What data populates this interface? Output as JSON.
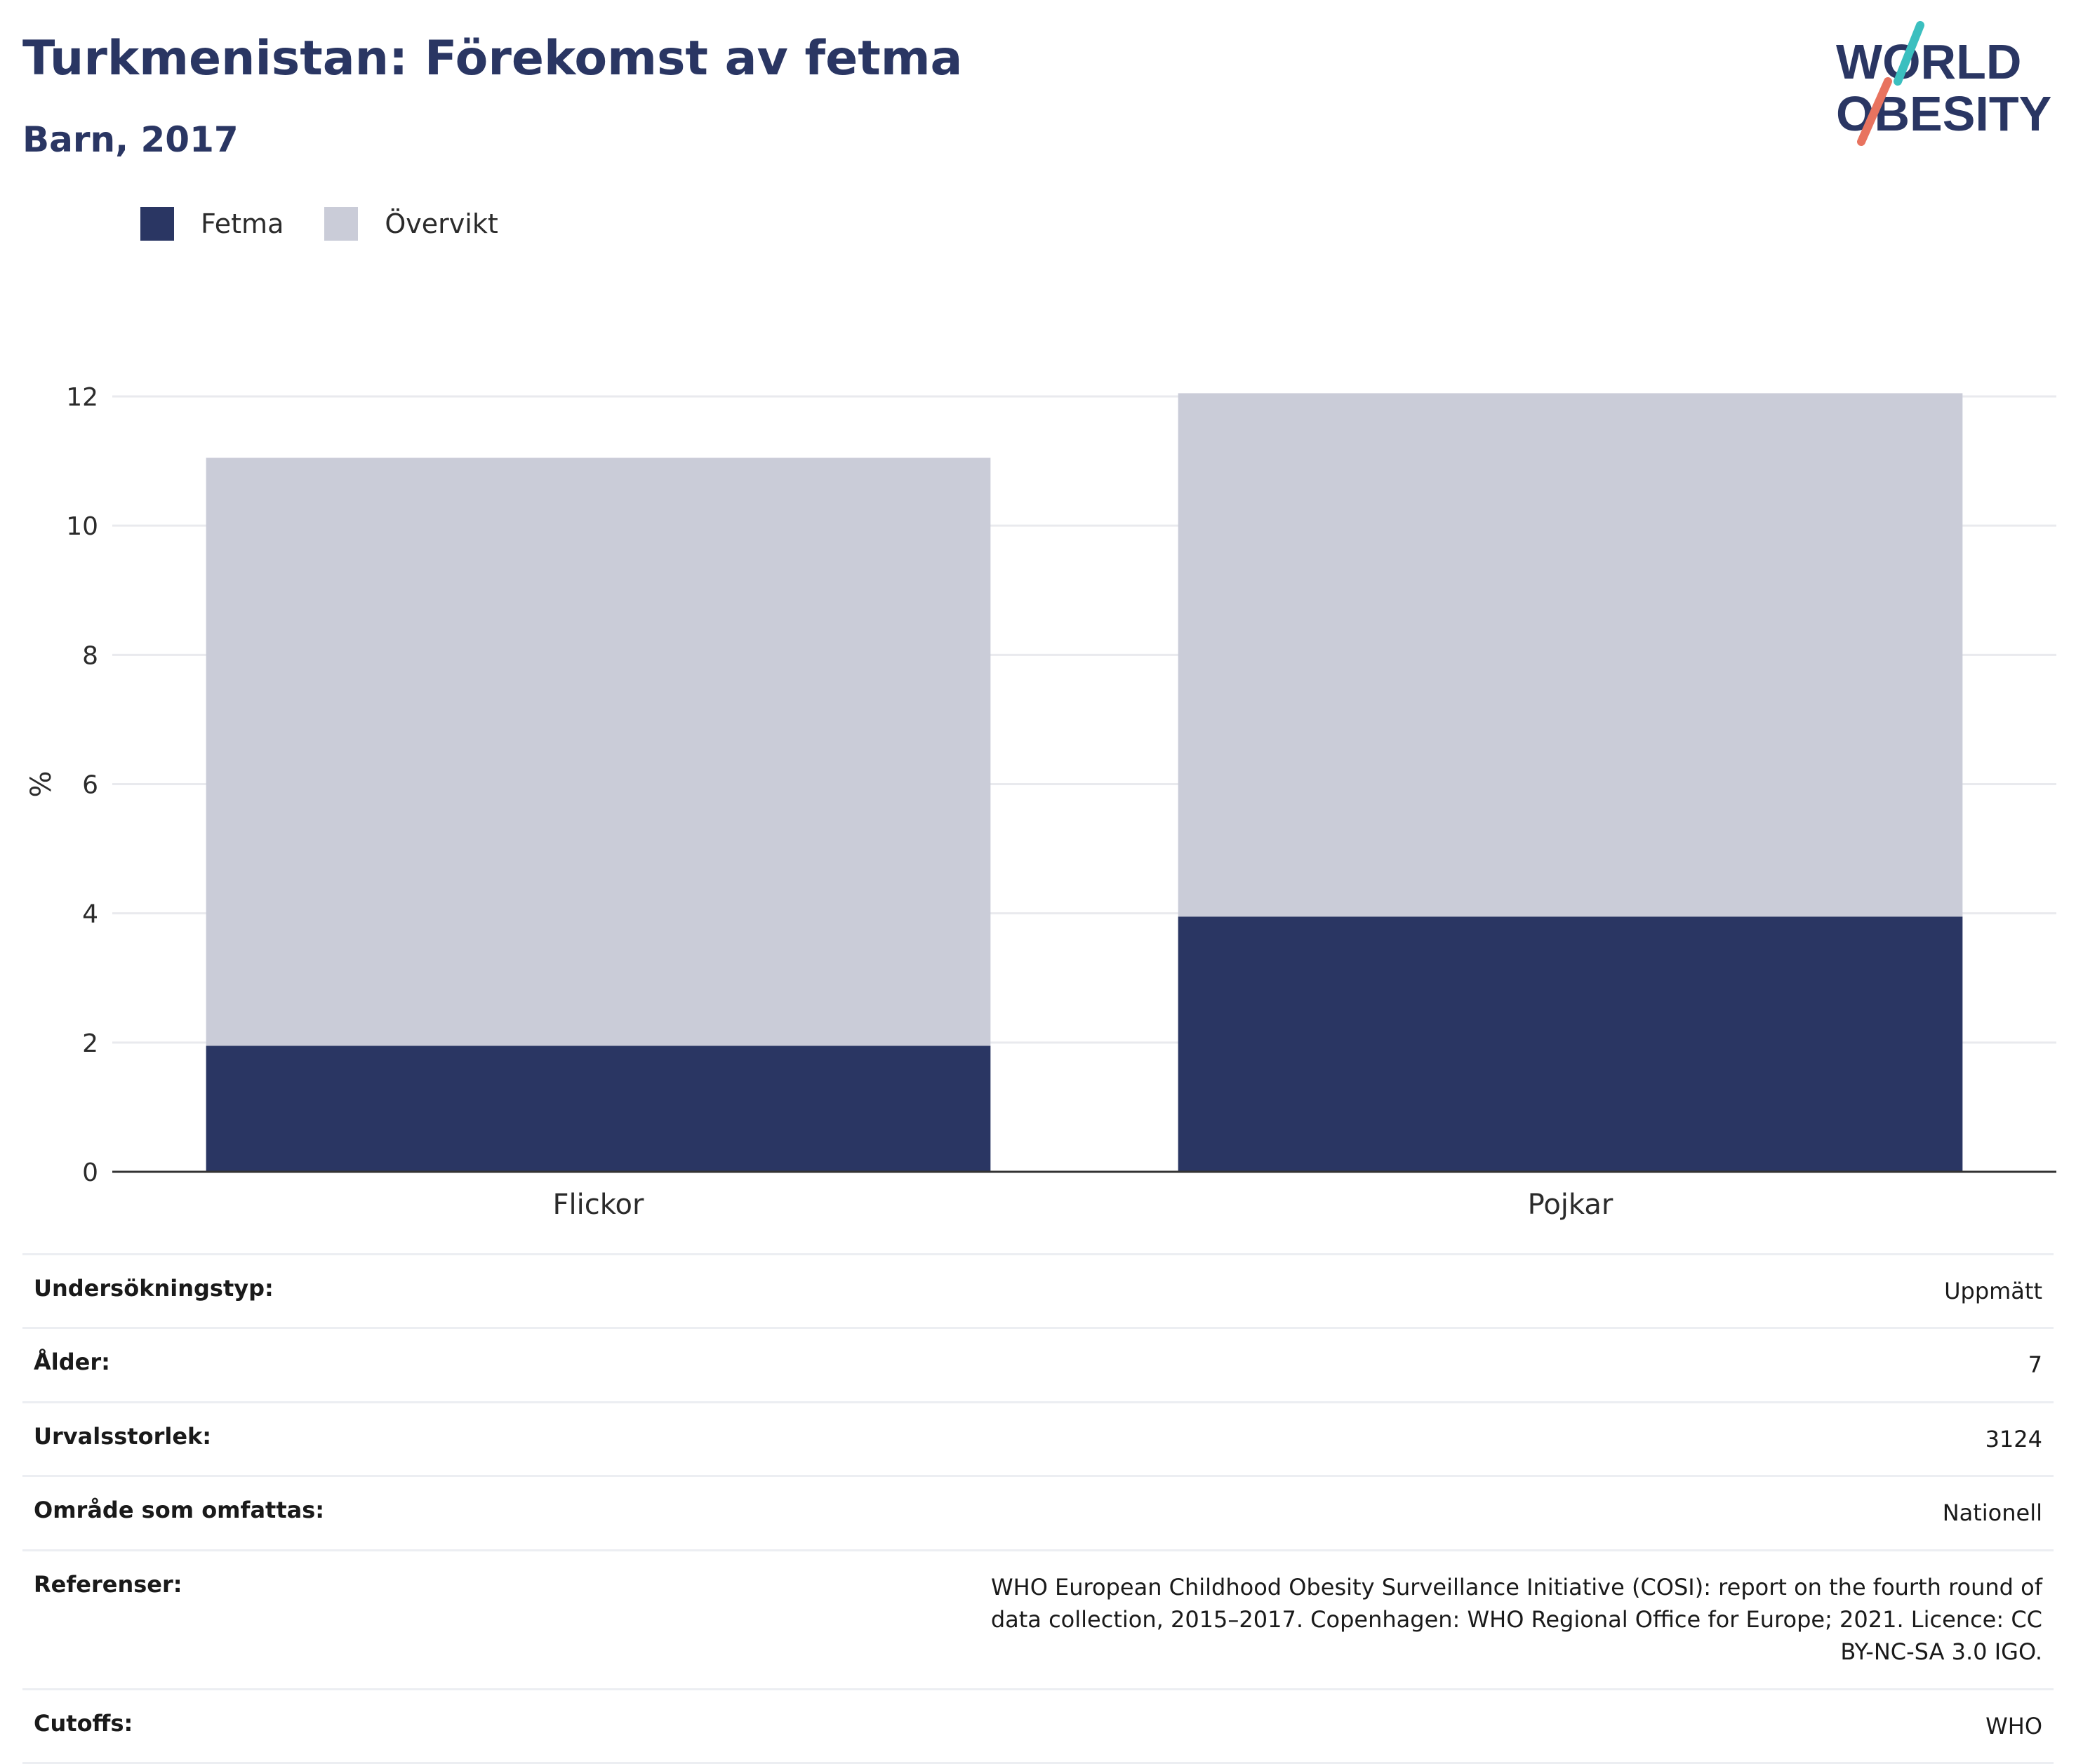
{
  "header": {
    "title": "Turkmenistan: Förekomst av fetma",
    "subtitle": "Barn, 2017"
  },
  "logo": {
    "line1": "WORLD",
    "line2": "OBESITY",
    "colors": {
      "text": "#2a3663",
      "teal": "#3bbfbf",
      "coral": "#e8735f"
    }
  },
  "colors": {
    "fetma": "#2a3663",
    "overvikt": "#caccd8",
    "grid": "#e9eaee",
    "axis": "#333333",
    "text": "#2a3663"
  },
  "chart_data": {
    "type": "bar",
    "stacked": true,
    "categories": [
      "Flickor",
      "Pojkar"
    ],
    "series": [
      {
        "name": "Fetma",
        "values": [
          1.95,
          3.95
        ]
      },
      {
        "name": "Övervikt",
        "values": [
          9.1,
          8.1
        ]
      }
    ],
    "ylabel": "%",
    "ylim": [
      0,
      12
    ],
    "yticks": [
      0,
      2,
      4,
      6,
      8,
      10,
      12
    ],
    "grid": true,
    "legend_position": "top-left"
  },
  "meta": [
    {
      "key": "Undersökningstyp:",
      "value": "Uppmätt"
    },
    {
      "key": "Ålder:",
      "value": "7"
    },
    {
      "key": "Urvalsstorlek:",
      "value": "3124"
    },
    {
      "key": "Område som omfattas:",
      "value": "Nationell"
    },
    {
      "key": "Referenser:",
      "value": "WHO European Childhood Obesity Surveillance Initiative (COSI): report on the fourth round of data collection, 2015–2017. Copenhagen: WHO Regional Office for Europe; 2021. Licence: CC BY-NC-SA 3.0 IGO."
    },
    {
      "key": "Cutoffs:",
      "value": "WHO"
    }
  ]
}
